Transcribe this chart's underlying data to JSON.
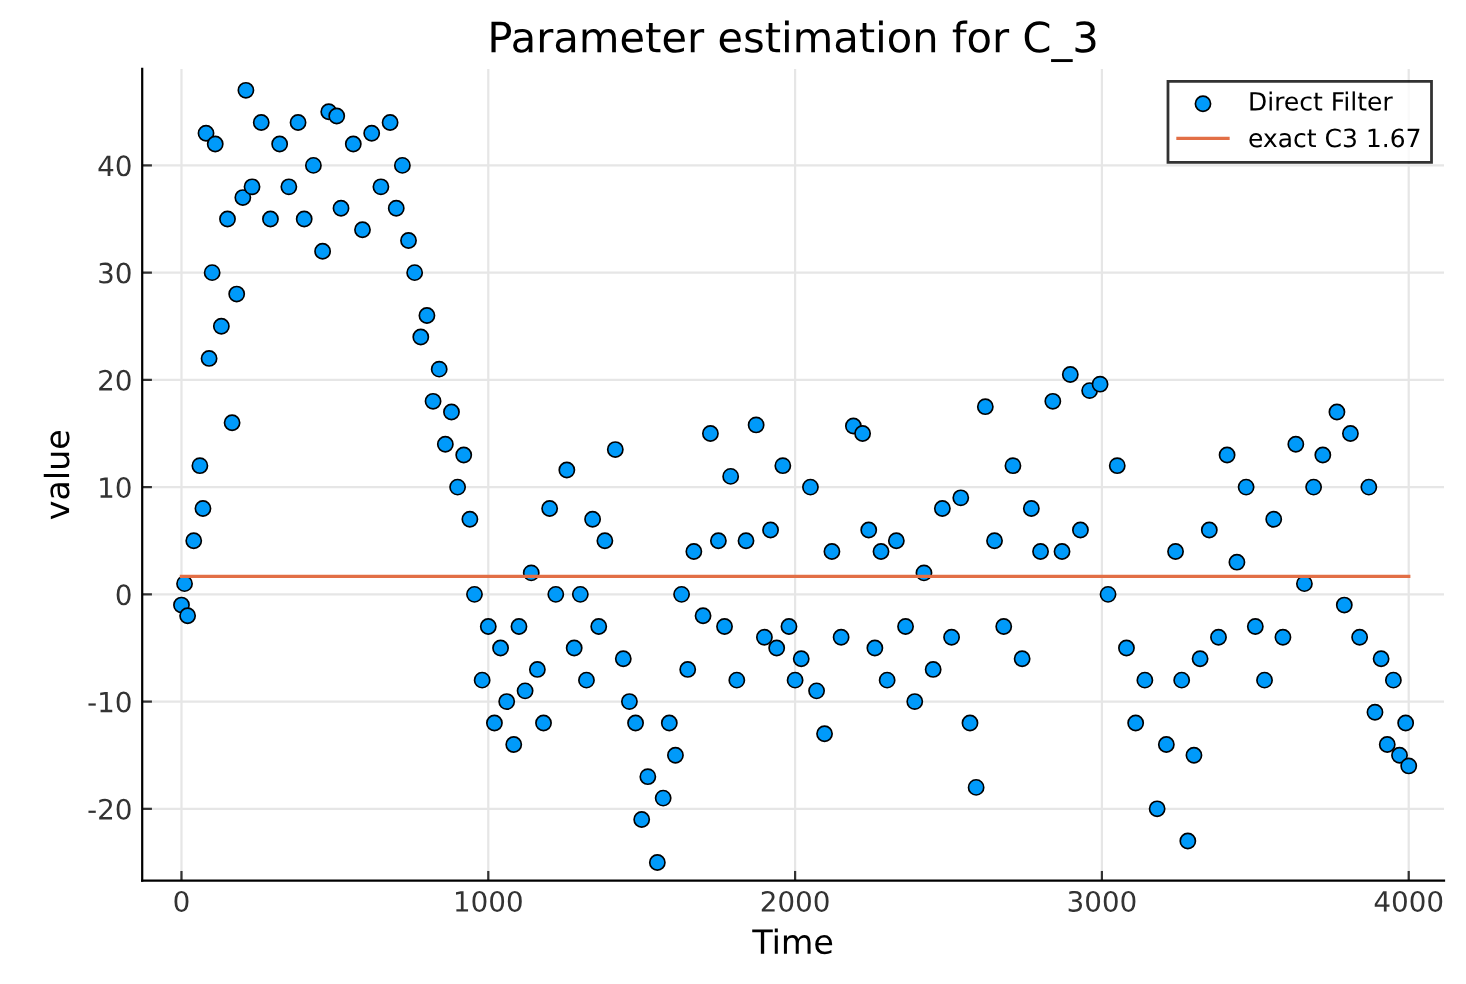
{
  "chart_data": {
    "type": "scatter",
    "title": "Parameter estimation for C_3",
    "xlabel": "Time",
    "ylabel": "value",
    "xlim": [
      -128,
      4115
    ],
    "ylim": [
      -26.7,
      49
    ],
    "xticks": [
      0,
      1000,
      2000,
      3000,
      4000
    ],
    "yticks": [
      -20,
      -10,
      0,
      10,
      20,
      30,
      40
    ],
    "grid": true,
    "legend": "top right",
    "marker": "circle",
    "series": [
      {
        "name": "Direct Filter",
        "color": "#009afa",
        "x": [
          0,
          10,
          20,
          40,
          60,
          70,
          80,
          90,
          100,
          110,
          130,
          150,
          165,
          180,
          200,
          210,
          230,
          260,
          290,
          320,
          350,
          380,
          400,
          430,
          460,
          480,
          506,
          520,
          560,
          590,
          620,
          650,
          680,
          700,
          720,
          740,
          760,
          780,
          800,
          820,
          840,
          860,
          880,
          900,
          920,
          940,
          955,
          980,
          1000,
          1020,
          1040,
          1060,
          1083,
          1100,
          1120,
          1140,
          1160,
          1180,
          1200,
          1220,
          1256,
          1280,
          1300,
          1320,
          1340,
          1360,
          1380,
          1414,
          1440,
          1460,
          1480,
          1500,
          1520,
          1551,
          1570,
          1590,
          1610,
          1630,
          1650,
          1670,
          1700,
          1724,
          1750,
          1770,
          1790,
          1810,
          1840,
          1873,
          1900,
          1920,
          1940,
          1960,
          1980,
          2000,
          2020,
          2050,
          2070,
          2096,
          2120,
          2150,
          2190,
          2220,
          2240,
          2260,
          2280,
          2300,
          2330,
          2360,
          2390,
          2420,
          2450,
          2480,
          2510,
          2540,
          2570,
          2590,
          2620,
          2650,
          2680,
          2710,
          2740,
          2770,
          2800,
          2840,
          2870,
          2897,
          2930,
          2960,
          2994,
          3020,
          3050,
          3080,
          3110,
          3140,
          3180,
          3210,
          3240,
          3260,
          3280,
          3300,
          3320,
          3350,
          3380,
          3408,
          3440,
          3470,
          3500,
          3530,
          3560,
          3590,
          3632,
          3660,
          3690,
          3720,
          3766,
          3790,
          3810,
          3840,
          3870,
          3890,
          3910,
          3930,
          3950,
          3970,
          3990,
          4000
        ],
        "values": [
          -1,
          1,
          -2,
          5,
          12,
          8,
          43,
          22,
          30,
          42,
          25,
          35,
          16,
          28,
          37,
          47,
          38,
          44,
          35,
          42,
          38,
          44,
          35,
          40,
          32,
          45,
          44.6,
          36,
          42,
          34,
          43,
          38,
          44,
          36,
          40,
          33,
          30,
          24,
          26,
          18,
          21,
          14,
          17,
          10,
          13,
          7,
          0,
          -8,
          -3,
          -12,
          -5,
          -10,
          -14,
          -3,
          -9,
          2,
          -7,
          -12,
          8,
          0,
          11.6,
          -5,
          0,
          -8,
          7,
          -3,
          5,
          13.5,
          -6,
          -10,
          -12,
          -21,
          -17,
          -25,
          -19,
          -12,
          -15,
          0,
          -7,
          4,
          -2,
          15,
          5,
          -3,
          11,
          -8,
          5,
          15.8,
          -4,
          6,
          -5,
          12,
          -3,
          -8,
          -6,
          10,
          -9,
          -13,
          4,
          -4,
          15.7,
          15,
          6,
          -5,
          4,
          -8,
          5,
          -3,
          -10,
          2,
          -7,
          8,
          -4,
          9,
          -12,
          -18,
          17.5,
          5,
          -3,
          12,
          -6,
          8,
          4,
          18,
          4,
          20.5,
          6,
          19,
          19.6,
          0,
          12,
          -5,
          -12,
          -8,
          -20,
          -14,
          4,
          -8,
          -23,
          -15,
          -6,
          6,
          -4,
          13,
          3,
          10,
          -3,
          -8,
          7,
          -4,
          14,
          1,
          10,
          13,
          17,
          -1,
          15,
          -4,
          10,
          -11,
          -6,
          -14,
          -8,
          -15,
          -12,
          -16
        ]
      },
      {
        "name": "exact C3 1.67",
        "type": "line",
        "color": "#e26f46",
        "marker": "none",
        "x": [
          0,
          4000
        ],
        "values": [
          1.67,
          1.67
        ]
      }
    ]
  }
}
